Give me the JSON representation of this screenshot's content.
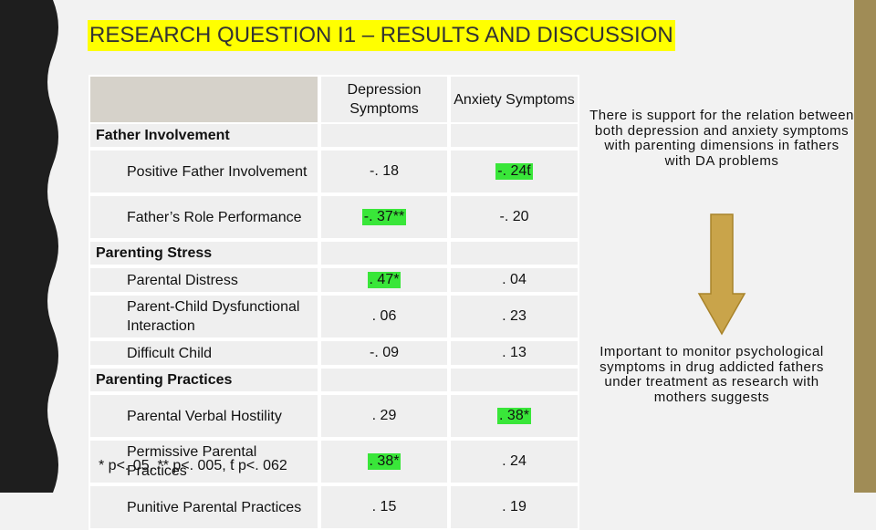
{
  "header": {
    "title": "RESEARCH QUESTION I1 – RESULTS AND DISCUSSION"
  },
  "table": {
    "columns": [
      "Depression Symptoms",
      "Anxiety Symptoms"
    ],
    "sections": [
      {
        "name": "Father Involvement",
        "rows": [
          {
            "label": "Positive Father Involvement",
            "values": [
              "-. 18",
              "-. 24ƭ"
            ],
            "highlighted": [
              false,
              true
            ]
          },
          {
            "label": "Father’s Role Performance",
            "values": [
              "-. 37**",
              "-. 20"
            ],
            "highlighted": [
              true,
              false
            ]
          }
        ]
      },
      {
        "name": "Parenting Stress",
        "rows": [
          {
            "label": "Parental Distress",
            "values": [
              ". 47*",
              ". 04"
            ],
            "highlighted": [
              true,
              false
            ]
          },
          {
            "label": "Parent-Child Dysfunctional Interaction",
            "values": [
              ". 06",
              ". 23"
            ],
            "highlighted": [
              false,
              false
            ]
          },
          {
            "label": "Difficult Child",
            "values": [
              "-. 09",
              ". 13"
            ],
            "highlighted": [
              false,
              false
            ]
          }
        ]
      },
      {
        "name": "Parenting Practices",
        "rows": [
          {
            "label": "Parental Verbal Hostility",
            "values": [
              ". 29",
              ". 38*"
            ],
            "highlighted": [
              false,
              true
            ]
          },
          {
            "label": "Permissive Parental Practices",
            "values": [
              ". 38*",
              ". 24"
            ],
            "highlighted": [
              true,
              false
            ]
          },
          {
            "label": "Punitive Parental Practices",
            "values": [
              ". 15",
              ". 19"
            ],
            "highlighted": [
              false,
              false
            ]
          }
        ]
      }
    ],
    "note": "* p<. 05, ** p<. 005, ƭ p<. 062"
  },
  "side_text": [
    "There is support for the relation between both depression and anxiety symptoms with parenting dimensions in fathers with DA problems",
    "Important to monitor psychological symptoms in drug addicted fathers under treatment as research with mothers suggests"
  ]
}
